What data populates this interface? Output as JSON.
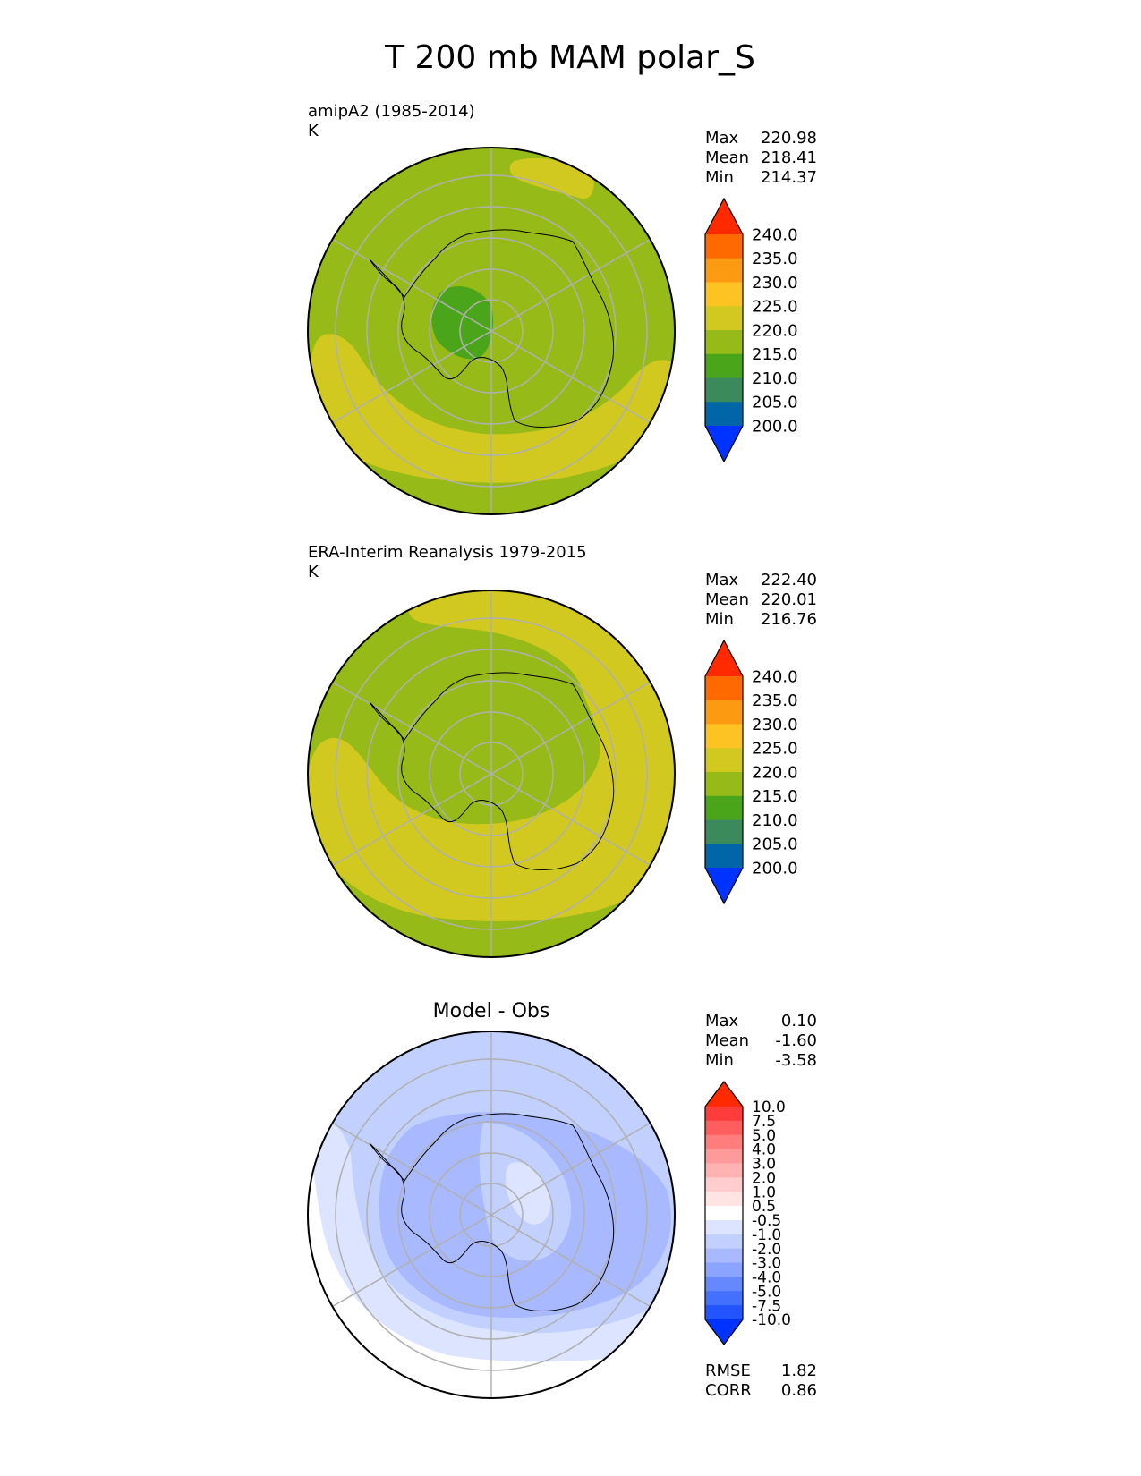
{
  "title": "T 200 mb MAM polar_S",
  "colors": {
    "abs_levels": [
      "#0033ff",
      "#0066a8",
      "#3a8a5c",
      "#4aa51a",
      "#96ba17",
      "#d2c920",
      "#fcc322",
      "#fc9b12",
      "#ff6a00",
      "#ff2a00"
    ],
    "diff_levels": [
      "#0033ff",
      "#2255ff",
      "#4470ff",
      "#6688ff",
      "#8aa4ff",
      "#a8b9ff",
      "#c2d0ff",
      "#dce4ff",
      "#ffffff",
      "#ffe4e4",
      "#ffcdcd",
      "#ffb2b2",
      "#ff9a9a",
      "#ff7d7d",
      "#ff5e5e",
      "#ff3c3c",
      "#ff2a00"
    ],
    "grid": "#b0b0b0",
    "coast": "#000000"
  },
  "chart_data": [
    {
      "type": "heatmap",
      "projection": "south-polar-stereographic",
      "title": "",
      "subtitle": "amipA2 (1985-2014)",
      "units": "K",
      "stats": [
        {
          "label": "Max",
          "value": "220.98"
        },
        {
          "label": "Mean",
          "value": "218.41"
        },
        {
          "label": "Min",
          "value": "214.37"
        }
      ],
      "colorbar_ticks": [
        "240.0",
        "235.0",
        "230.0",
        "225.0",
        "220.0",
        "215.0",
        "210.0",
        "205.0",
        "200.0"
      ],
      "colorbar_range": [
        195,
        245
      ],
      "colorbar_extend": "both"
    },
    {
      "type": "heatmap",
      "projection": "south-polar-stereographic",
      "title": "",
      "subtitle": "ERA-Interim Reanalysis 1979-2015",
      "units": "K",
      "stats": [
        {
          "label": "Max",
          "value": "222.40"
        },
        {
          "label": "Mean",
          "value": "220.01"
        },
        {
          "label": "Min",
          "value": "216.76"
        }
      ],
      "colorbar_ticks": [
        "240.0",
        "235.0",
        "230.0",
        "225.0",
        "220.0",
        "215.0",
        "210.0",
        "205.0",
        "200.0"
      ],
      "colorbar_range": [
        195,
        245
      ],
      "colorbar_extend": "both"
    },
    {
      "type": "heatmap",
      "projection": "south-polar-stereographic",
      "title": "Model - Obs",
      "subtitle": "",
      "units": "",
      "stats": [
        {
          "label": "Max",
          "value": "0.10"
        },
        {
          "label": "Mean",
          "value": "-1.60"
        },
        {
          "label": "Min",
          "value": "-3.58"
        }
      ],
      "colorbar_ticks": [
        "10.0",
        "7.5",
        "5.0",
        "4.0",
        "3.0",
        "2.0",
        "1.0",
        "0.5",
        "-0.5",
        "-1.0",
        "-2.0",
        "-3.0",
        "-4.0",
        "-5.0",
        "-7.5",
        "-10.0"
      ],
      "colorbar_range": [
        -10,
        10
      ],
      "colorbar_extend": "both",
      "metrics": [
        {
          "label": "RMSE",
          "value": "1.82"
        },
        {
          "label": "CORR",
          "value": "0.86"
        }
      ]
    }
  ]
}
